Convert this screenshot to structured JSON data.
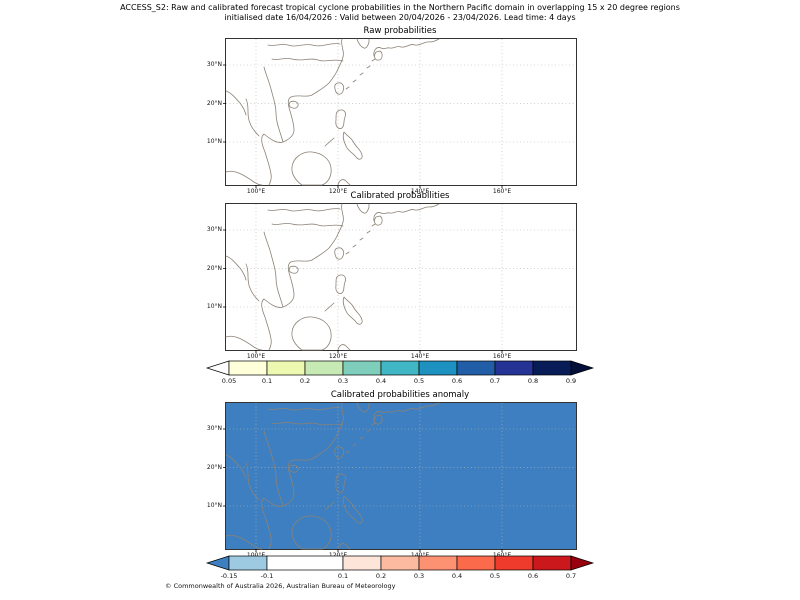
{
  "header": {
    "title_line1": "ACCESS_S2: Raw and calibrated forecast tropical cyclone probabilities in the Northern Pacific domain in overlapping 15 x 20 degree regions",
    "title_line2": "initialised date 16/04/2026 :  Valid between 20/04/2026 - 23/04/2026. Lead time: 4 days"
  },
  "panels": [
    {
      "title": "Raw probabilities",
      "fill": "#ffffff"
    },
    {
      "title": "Calibrated probabilities",
      "fill": "#ffffff"
    },
    {
      "title": "Calibrated probabilities anomaly",
      "fill": "#3d7fc0"
    }
  ],
  "axes": {
    "lat": [
      "30°N",
      "20°N",
      "10°N"
    ],
    "lon": [
      "100°E",
      "120°E",
      "140°E",
      "160°E"
    ]
  },
  "colorbars": [
    {
      "name": "probability-scale",
      "ticks": [
        "0.05",
        "0.1",
        "0.2",
        "0.3",
        "0.4",
        "0.5",
        "0.6",
        "0.7",
        "0.8",
        "0.9"
      ],
      "segments": [
        "#ffffd9",
        "#edf8b1",
        "#c7e9b4",
        "#7fcdbb",
        "#41b6c4",
        "#1d91c0",
        "#225ea8",
        "#253494",
        "#081d58"
      ],
      "arrow_left": "#ffffff",
      "arrow_right": "#040f3a"
    },
    {
      "name": "anomaly-scale",
      "ticks": [
        "-0.15",
        "-0.1",
        "0.1",
        "0.2",
        "0.3",
        "0.4",
        "0.5",
        "0.6",
        "0.7"
      ],
      "segments": [
        "#9ecae1",
        "#ffffff",
        "#fee5d9",
        "#fcbba1",
        "#fc9272",
        "#fb6a4a",
        "#ef3b2c",
        "#cb181d"
      ],
      "widths": [
        1,
        2,
        1,
        1,
        1,
        1,
        1,
        1
      ],
      "arrow_left": "#3d7fc0",
      "arrow_right": "#99000d"
    }
  ],
  "footer": {
    "copyright": "© Commonwealth of Australia 2026, Australian Bureau of Meteorology"
  },
  "chart_data": [
    {
      "type": "heatmap",
      "title": "Raw probabilities",
      "xlabel": "longitude",
      "ylabel": "latitude",
      "x_ticks": [
        "100°E",
        "120°E",
        "140°E",
        "160°E"
      ],
      "y_ticks": [
        "30°N",
        "20°N",
        "10°N"
      ],
      "extent": {
        "lon": [
          93,
          178
        ],
        "lat": [
          0,
          37
        ]
      },
      "values": "uniform below 0.05 — no shaded probability regions, only coastlines and dotted gridlines on white",
      "scale_ticks": [
        0.05,
        0.1,
        0.2,
        0.3,
        0.4,
        0.5,
        0.6,
        0.7,
        0.8,
        0.9
      ]
    },
    {
      "type": "heatmap",
      "title": "Calibrated probabilities",
      "xlabel": "longitude",
      "ylabel": "latitude",
      "x_ticks": [
        "100°E",
        "120°E",
        "140°E",
        "160°E"
      ],
      "y_ticks": [
        "30°N",
        "20°N",
        "10°N"
      ],
      "extent": {
        "lon": [
          93,
          178
        ],
        "lat": [
          0,
          37
        ]
      },
      "values": "uniform below 0.05 — no shaded probability regions, only coastlines and dotted gridlines on white",
      "scale_ticks": [
        0.05,
        0.1,
        0.2,
        0.3,
        0.4,
        0.5,
        0.6,
        0.7,
        0.8,
        0.9
      ]
    },
    {
      "type": "heatmap",
      "title": "Calibrated probabilities anomaly",
      "xlabel": "longitude",
      "ylabel": "latitude",
      "x_ticks": [
        "100°E",
        "120°E",
        "140°E",
        "160°E"
      ],
      "y_ticks": [
        "30°N",
        "20°N",
        "10°N"
      ],
      "extent": {
        "lon": [
          93,
          178
        ],
        "lat": [
          0,
          37
        ]
      },
      "values": "uniform negative anomaly ≈ -0.15 — solid medium-blue fill over the entire domain",
      "scale_ticks": [
        -0.15,
        -0.1,
        0.1,
        0.2,
        0.3,
        0.4,
        0.5,
        0.6,
        0.7
      ]
    }
  ]
}
